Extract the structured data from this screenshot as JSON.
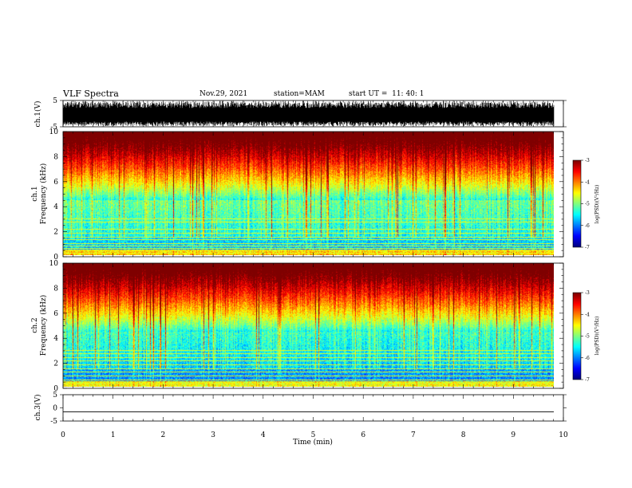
{
  "header": {
    "title": "VLF Spectra",
    "date": "Nov.29, 2021",
    "station": "station=MAM",
    "start_ut": "start UT =  11: 40: 1"
  },
  "chart_data": [
    {
      "type": "line",
      "name": "waveform-ch1",
      "ylabel": "ch.1(V)",
      "ylim": [
        -5,
        5
      ],
      "yticks": [
        "5",
        "-5"
      ],
      "xlim": [
        0,
        10
      ],
      "style": "dense black burst waveform"
    },
    {
      "type": "heatmap",
      "name": "spectrogram-ch1",
      "ylabel_line1": "ch.1",
      "ylabel_line2": "Frequency (kHz)",
      "ylim": [
        0,
        10
      ],
      "yticks": [
        "0",
        "2",
        "4",
        "6",
        "8",
        "10"
      ],
      "xlim": [
        0,
        9.85
      ],
      "colorbar": {
        "label": "log(PSD)(V²/Hz)",
        "range": [
          -7,
          -3
        ],
        "ticks": [
          "-3",
          "-4",
          "-5",
          "-6",
          "-7"
        ]
      },
      "horizontal_lines_khz": [
        0.2,
        0.4,
        0.6,
        0.8,
        1.0,
        1.3,
        1.5,
        1.8,
        2.1,
        2.7,
        3.0
      ]
    },
    {
      "type": "heatmap",
      "name": "spectrogram-ch2",
      "ylabel_line1": "ch.2",
      "ylabel_line2": "Frequency (kHz)",
      "ylim": [
        0,
        10
      ],
      "yticks": [
        "0",
        "2",
        "4",
        "6",
        "8",
        "10"
      ],
      "xlim": [
        0,
        9.85
      ],
      "colorbar": {
        "label": "log(PSD)(V²/Hz)",
        "range": [
          -7,
          -3
        ],
        "ticks": [
          "-3",
          "-4",
          "-5",
          "-6",
          "-7"
        ]
      },
      "horizontal_lines_khz": [
        0.3,
        0.6,
        0.9,
        1.2,
        1.5,
        1.8,
        2.1,
        2.4,
        2.7,
        3.0
      ]
    },
    {
      "type": "line",
      "name": "waveform-ch3",
      "ylabel": "ch.3(V)",
      "ylim": [
        -5,
        5
      ],
      "yticks": [
        "5",
        "0",
        "-5"
      ],
      "constant_value": -1.5
    }
  ],
  "xaxis": {
    "label": "Time (min)",
    "ticks": [
      "0",
      "1",
      "2",
      "3",
      "4",
      "5",
      "6",
      "7",
      "8",
      "9",
      "10"
    ],
    "range": [
      0,
      10
    ]
  },
  "colors": {
    "jet": [
      "#00008f",
      "#0000ff",
      "#0080ff",
      "#00ffff",
      "#80ff80",
      "#ffff00",
      "#ff8000",
      "#ff0000",
      "#800000"
    ]
  }
}
